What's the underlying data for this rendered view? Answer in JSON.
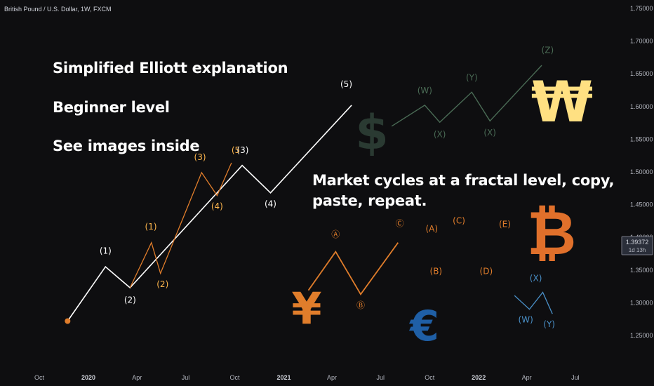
{
  "chart_header": "British Pound / U.S. Dollar, 1W, FXCM",
  "annotations": {
    "line1": "Simplified Elliott explanation",
    "line2": "Beginner level",
    "line3": "See images inside",
    "fractal_line1": "Market cycles at a fractal level, copy,",
    "fractal_line2": "paste, repeat."
  },
  "price_tag": {
    "price": "1.39372",
    "countdown": "1d 13h",
    "color": "#787b86"
  },
  "currency_symbols": [
    {
      "icon": "dollar-sign",
      "char": "$",
      "color": "#2a3a32"
    },
    {
      "icon": "won-sign",
      "char": "₩",
      "color": "#ffe082"
    },
    {
      "icon": "bitcoin-sign",
      "char": "B",
      "color": "#e0702b"
    },
    {
      "icon": "yen-sign",
      "char": "¥",
      "color": "#e07d2b"
    },
    {
      "icon": "euro-sign",
      "char": "€",
      "color": "#1f5fa6"
    }
  ],
  "colors": {
    "background": "#0e0e10",
    "main_wave": "#ffffff",
    "sub_wave": "#e07d2b",
    "sub_labels": "#ffb74d",
    "abc": "#e07d2b",
    "wxyxz": "#4a6b55",
    "small_wxy": "#4a90c8",
    "start_dot": "#e07d2b"
  },
  "chart_data": {
    "type": "line",
    "title": "British Pound / U.S. Dollar, 1W, FXCM",
    "y_axis": {
      "ticks": [
        "1.25000",
        "1.30000",
        "1.35000",
        "1.40000",
        "1.45000",
        "1.50000",
        "1.55000",
        "1.60000",
        "1.65000",
        "1.70000",
        "1.75000"
      ],
      "range": [
        1.2,
        1.77
      ],
      "position": "right"
    },
    "x_axis": {
      "ticks": [
        {
          "label": "Oct",
          "date": "2019-10-01",
          "year": false
        },
        {
          "label": "2020",
          "date": "2020-01-01",
          "year": true
        },
        {
          "label": "Apr",
          "date": "2020-04-01",
          "year": false
        },
        {
          "label": "Jul",
          "date": "2020-07-01",
          "year": false
        },
        {
          "label": "Oct",
          "date": "2020-10-01",
          "year": false
        },
        {
          "label": "2021",
          "date": "2021-01-01",
          "year": true
        },
        {
          "label": "Apr",
          "date": "2021-04-01",
          "year": false
        },
        {
          "label": "Jul",
          "date": "2021-07-01",
          "year": false
        },
        {
          "label": "Oct",
          "date": "2021-10-01",
          "year": false
        },
        {
          "label": "2022",
          "date": "2022-01-01",
          "year": true
        },
        {
          "label": "Apr",
          "date": "2022-04-01",
          "year": false
        },
        {
          "label": "Jul",
          "date": "2022-07-01",
          "year": false
        }
      ],
      "range": [
        "2019-08-01",
        "2022-09-15"
      ]
    },
    "grid": false,
    "series": [
      {
        "name": "",
        "role": "main-impulse",
        "x": [
          "2019-11-23",
          "2020-02-02",
          "2020-03-19",
          "2020-10-15",
          "2020-12-07",
          "2021-05-08"
        ],
        "y": [
          1.272,
          1.355,
          1.323,
          1.51,
          1.468,
          1.602
        ]
      },
      {
        "name": "",
        "role": "sub-impulse",
        "x": [
          "2020-03-19",
          "2020-04-28",
          "2020-05-15",
          "2020-07-31",
          "2020-08-29",
          "2020-09-25"
        ],
        "y": [
          1.323,
          1.392,
          1.345,
          1.499,
          1.464,
          1.514
        ]
      },
      {
        "name": "",
        "role": "abc",
        "x": [
          "2021-02-16",
          "2021-04-08",
          "2021-05-25",
          "2021-08-03"
        ],
        "y": [
          1.319,
          1.378,
          1.313,
          1.392
        ]
      },
      {
        "name": "",
        "role": "wxyxz",
        "x": [
          "2021-07-22",
          "2021-09-22",
          "2021-10-20",
          "2021-12-19",
          "2022-01-22",
          "2022-04-29"
        ],
        "y": [
          1.57,
          1.602,
          1.576,
          1.622,
          1.578,
          1.663
        ]
      },
      {
        "name": "",
        "role": "small-wxy",
        "x": [
          "2022-03-09",
          "2022-04-06",
          "2022-05-01",
          "2022-05-19"
        ],
        "y": [
          1.311,
          1.29,
          1.316,
          1.283
        ]
      }
    ],
    "wave_labels": [
      {
        "text": "(1)",
        "x": "2020-02-02",
        "y": 1.375,
        "color": "white"
      },
      {
        "text": "(2)",
        "x": "2020-03-19",
        "y": 1.3,
        "color": "white"
      },
      {
        "text": "(3)",
        "x": "2020-10-16",
        "y": 1.529,
        "color": "white"
      },
      {
        "text": "(4)",
        "x": "2020-12-07",
        "y": 1.447,
        "color": "white"
      },
      {
        "text": "(5)",
        "x": "2021-04-28",
        "y": 1.63,
        "color": "white"
      },
      {
        "text": "(1)",
        "x": "2020-04-27",
        "y": 1.412,
        "color": "sub"
      },
      {
        "text": "(2)",
        "x": "2020-05-19",
        "y": 1.324,
        "color": "sub"
      },
      {
        "text": "(3)",
        "x": "2020-07-28",
        "y": 1.518,
        "color": "sub"
      },
      {
        "text": "(4)",
        "x": "2020-08-29",
        "y": 1.443,
        "color": "sub"
      },
      {
        "text": "(5",
        "x": "2020-10-03",
        "y": 1.529,
        "color": "sub"
      },
      {
        "text": "Ⓐ",
        "x": "2021-04-08",
        "y": 1.4,
        "color": "abc"
      },
      {
        "text": "Ⓑ",
        "x": "2021-05-25",
        "y": 1.292,
        "color": "abc"
      },
      {
        "text": "Ⓒ",
        "x": "2021-08-06",
        "y": 1.417,
        "color": "abc"
      },
      {
        "text": "(W)",
        "x": "2021-09-22",
        "y": 1.62,
        "color": "wxyxz"
      },
      {
        "text": "(X)",
        "x": "2021-10-20",
        "y": 1.553,
        "color": "wxyxz"
      },
      {
        "text": "(Y)",
        "x": "2021-12-19",
        "y": 1.64,
        "color": "wxyxz"
      },
      {
        "text": "(X)",
        "x": "2022-01-22",
        "y": 1.556,
        "color": "wxyxz"
      },
      {
        "text": "(Z)",
        "x": "2022-05-10",
        "y": 1.682,
        "color": "wxyxz"
      },
      {
        "text": "(A)",
        "x": "2021-10-05",
        "y": 1.409,
        "color": "abc"
      },
      {
        "text": "(B)",
        "x": "2021-10-13",
        "y": 1.344,
        "color": "abc"
      },
      {
        "text": "(C)",
        "x": "2021-11-25",
        "y": 1.421,
        "color": "abc"
      },
      {
        "text": "(D)",
        "x": "2022-01-15",
        "y": 1.344,
        "color": "abc"
      },
      {
        "text": "(E)",
        "x": "2022-02-19",
        "y": 1.416,
        "color": "abc"
      },
      {
        "text": "(X)",
        "x": "2022-04-18",
        "y": 1.333,
        "color": "small"
      },
      {
        "text": "(W)",
        "x": "2022-03-30",
        "y": 1.27,
        "color": "small"
      },
      {
        "text": "(Y)",
        "x": "2022-05-13",
        "y": 1.263,
        "color": "small"
      }
    ],
    "start_point": {
      "x": "2019-11-23",
      "y": 1.272
    }
  }
}
